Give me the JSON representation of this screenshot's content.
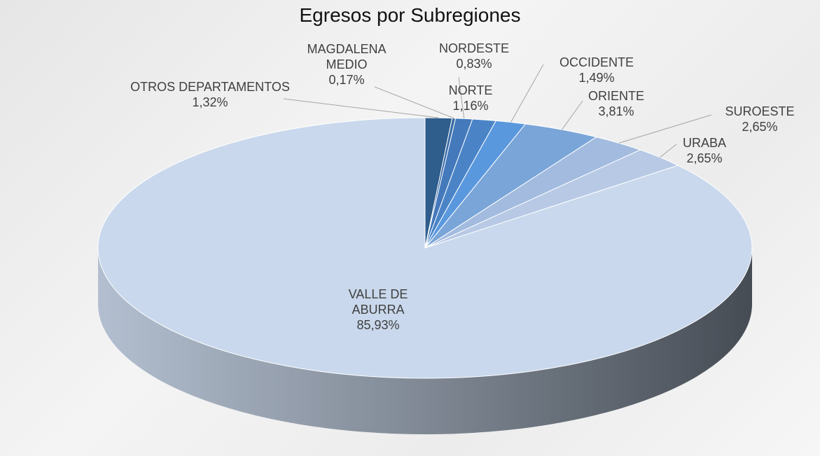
{
  "chart_data": {
    "type": "pie3d",
    "title": "Egresos por Subregiones",
    "categories": [
      "OTROS DEPARTAMENTOS",
      "MAGDALENA MEDIO",
      "NORDESTE",
      "NORTE",
      "OCCIDENTE",
      "ORIENTE",
      "SUROESTE",
      "URABA",
      "VALLE DE ABURRA"
    ],
    "values": [
      1.32,
      0.17,
      0.83,
      1.16,
      1.49,
      3.81,
      2.65,
      2.65,
      85.93
    ],
    "value_labels": [
      "1,32%",
      "0,17%",
      "0,83%",
      "1,16%",
      "1,49%",
      "3,81%",
      "2,65%",
      "2,65%",
      "85,93%"
    ],
    "colors": [
      "#2f5d8c",
      "#3a6da6",
      "#4479bb",
      "#4a84c7",
      "#5a98de",
      "#7aa5d8",
      "#a2bbdf",
      "#b7c9e5",
      "#c9d8ec"
    ]
  }
}
